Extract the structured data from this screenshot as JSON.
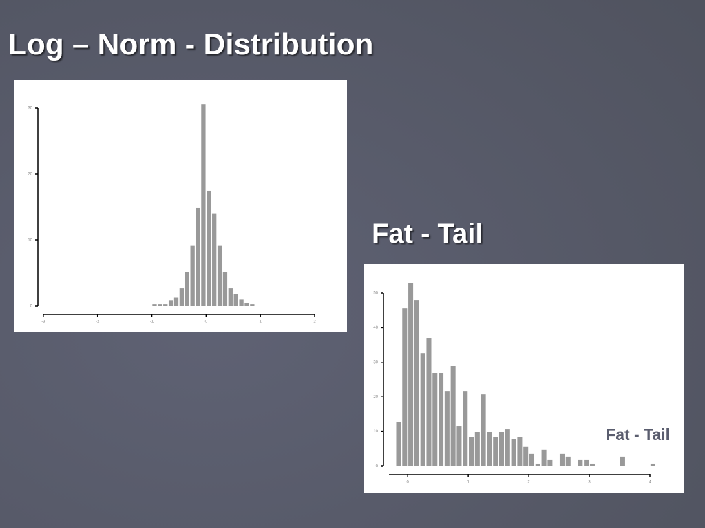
{
  "slide_title": "Log – Norm - Distribution",
  "heading": "Fat - Tail",
  "chart_data": [
    {
      "type": "histogram",
      "color": "#999999",
      "bins": [
        -1.0,
        -0.9,
        -0.8,
        -0.7,
        -0.6,
        -0.5,
        -0.4,
        -0.3,
        -0.2,
        -0.1,
        0.0,
        0.1,
        0.2,
        0.3,
        0.4,
        0.5,
        0.6,
        0.7,
        0.8,
        0.9
      ],
      "values": [
        0.3,
        0.3,
        0.3,
        0.8,
        1.3,
        2.7,
        5.2,
        9.1,
        14.9,
        30.5,
        17.4,
        14.0,
        9.1,
        5.2,
        2.7,
        1.8,
        1.0,
        0.5,
        0.3
      ],
      "xlim": [
        -3.1,
        2
      ],
      "xticks": [
        -3,
        -2,
        -1,
        0,
        1,
        2
      ],
      "ylim": [
        0,
        30
      ],
      "yticks": [
        0,
        10,
        20,
        30
      ]
    },
    {
      "type": "histogram",
      "color": "#999999",
      "annotation": "Fat - Tail",
      "bins": [
        -0.2,
        -0.1,
        0.0,
        0.1,
        0.2,
        0.3,
        0.4,
        0.5,
        0.6,
        0.7,
        0.8,
        0.9,
        1.0,
        1.1,
        1.2,
        1.3,
        1.4,
        1.5,
        1.6,
        1.7,
        1.8,
        1.9,
        2.0,
        2.1,
        2.2,
        2.3,
        2.4,
        2.5,
        2.6,
        2.7,
        2.8,
        2.9,
        3.0,
        3.1,
        3.2,
        3.3,
        3.4,
        3.5,
        3.6,
        3.7,
        3.8,
        3.9,
        4.0,
        4.1
      ],
      "values": [
        12.7,
        45.6,
        52.8,
        47.8,
        32.5,
        36.9,
        26.8,
        26.8,
        21.6,
        28.8,
        11.5,
        21.6,
        8.5,
        9.9,
        20.8,
        9.9,
        8.5,
        9.9,
        10.7,
        7.9,
        8.5,
        5.6,
        3.6,
        0.6,
        4.8,
        1.8,
        0,
        3.6,
        2.6,
        0,
        1.8,
        1.8,
        0.6,
        0,
        0,
        0,
        0,
        2.6,
        0,
        0,
        0,
        0,
        0.6
      ],
      "xlim": [
        -0.4,
        4
      ],
      "xticks": [
        0,
        1,
        2,
        3,
        4
      ],
      "ylim": [
        0,
        50
      ],
      "yticks": [
        0,
        10,
        20,
        30,
        40,
        50
      ]
    }
  ]
}
